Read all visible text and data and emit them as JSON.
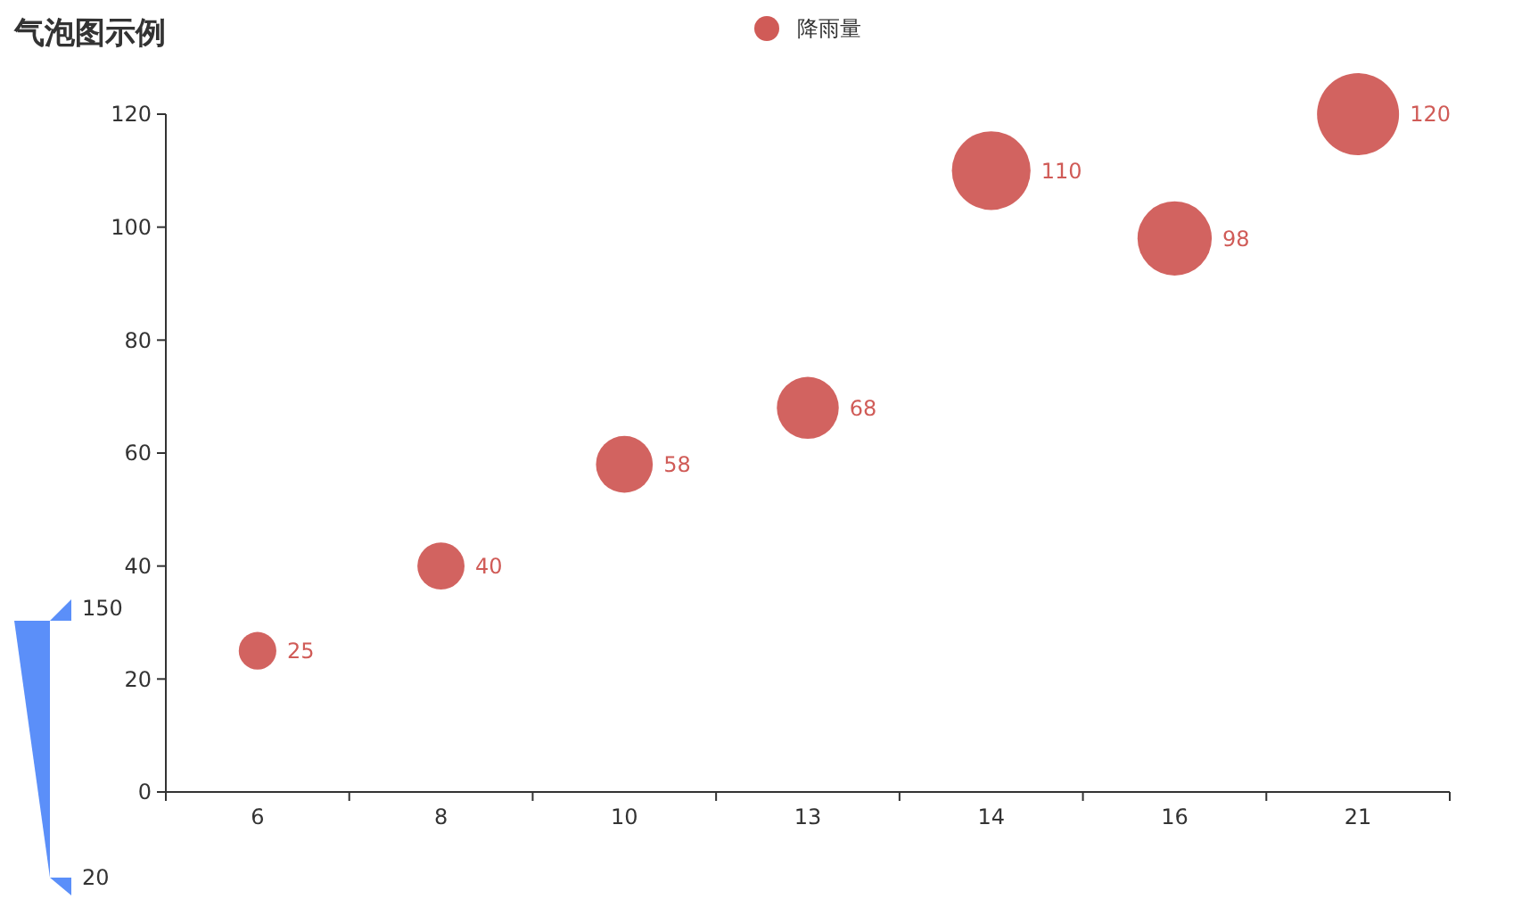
{
  "chart_data": {
    "type": "bubble",
    "title": "气泡图示例",
    "categories": [
      "6",
      "8",
      "10",
      "13",
      "14",
      "16",
      "21"
    ],
    "series": [
      {
        "name": "降雨量",
        "color": "#d05b57",
        "values": [
          25,
          40,
          58,
          68,
          110,
          98,
          120
        ],
        "sizes": [
          0.21,
          0.33,
          0.48,
          0.57,
          0.92,
          0.82,
          1
        ]
      }
    ],
    "annotations": [
      "150",
      "20"
    ],
    "ylim": [
      0,
      120
    ],
    "yticks": [
      0,
      20,
      40,
      60,
      80,
      100,
      120
    ],
    "data_labels": true,
    "legend": "top",
    "grid": false
  }
}
